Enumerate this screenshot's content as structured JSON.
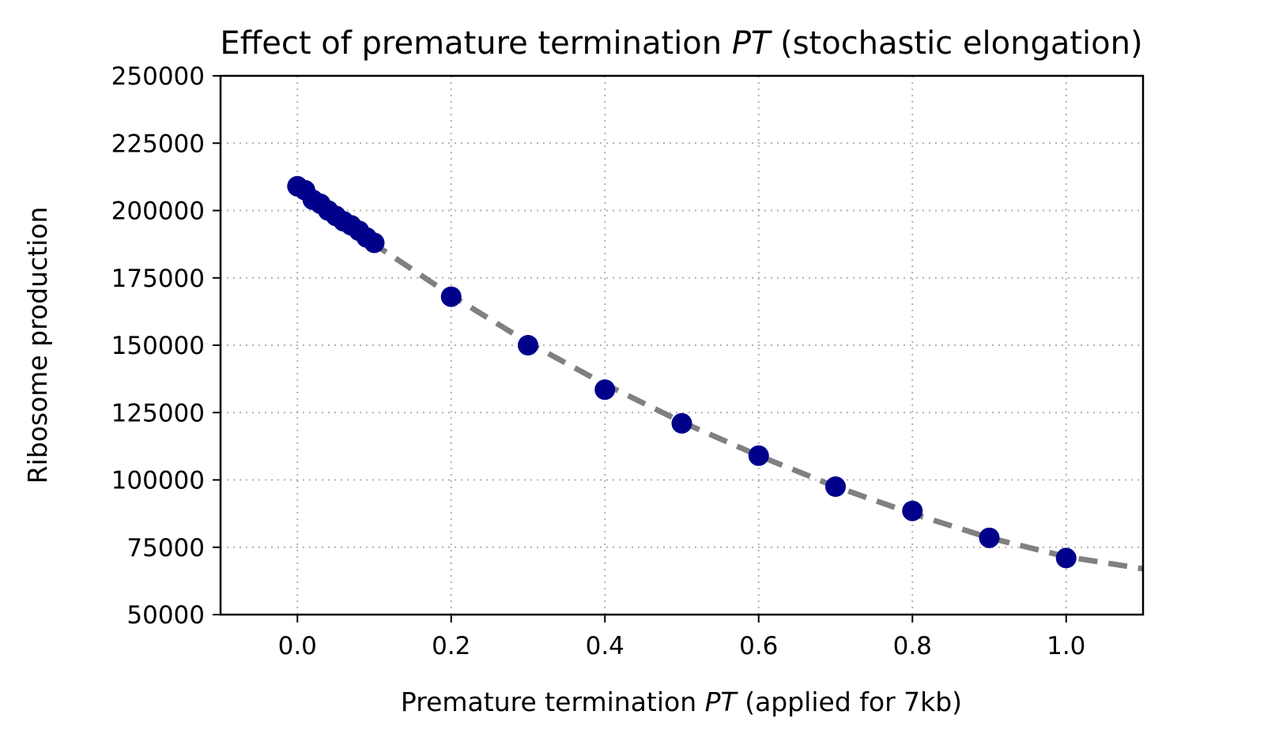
{
  "chart_data": {
    "type": "scatter",
    "title_parts": [
      "Effect of premature termination ",
      "PT",
      " (stochastic elongation)"
    ],
    "xlabel_parts": [
      "Premature termination ",
      "PT",
      " (applied for 7kb)"
    ],
    "ylabel": "Ribosome production",
    "xlim": [
      -0.1,
      1.1
    ],
    "ylim": [
      50000,
      250000
    ],
    "x_ticks": [
      0.0,
      0.2,
      0.4,
      0.6,
      0.8,
      1.0
    ],
    "x_tick_labels": [
      "0.0",
      "0.2",
      "0.4",
      "0.6",
      "0.8",
      "1.0"
    ],
    "y_ticks": [
      50000,
      75000,
      100000,
      125000,
      150000,
      175000,
      200000,
      225000,
      250000
    ],
    "y_tick_labels": [
      "50000",
      "75000",
      "100000",
      "125000",
      "150000",
      "175000",
      "200000",
      "225000",
      "250000"
    ],
    "grid": true,
    "points": {
      "x": [
        0.0,
        0.01,
        0.02,
        0.03,
        0.04,
        0.05,
        0.06,
        0.07,
        0.08,
        0.09,
        0.1,
        0.2,
        0.3,
        0.4,
        0.5,
        0.6,
        0.7,
        0.8,
        0.9,
        1.0
      ],
      "y": [
        209000,
        207500,
        204000,
        202500,
        200000,
        198000,
        196000,
        194500,
        192500,
        190000,
        188000,
        168000,
        150000,
        133500,
        121000,
        109000,
        97500,
        88500,
        78500,
        71000
      ],
      "color": "#00008b"
    },
    "fit_curve": {
      "x": [
        0.0,
        0.1,
        0.2,
        0.3,
        0.4,
        0.5,
        0.6,
        0.7,
        0.8,
        0.9,
        1.0,
        1.1
      ],
      "y": [
        208000,
        187500,
        168500,
        151000,
        135500,
        121500,
        109000,
        97500,
        87500,
        78500,
        71500,
        67000
      ],
      "color": "#808080",
      "style": "dashed"
    }
  }
}
